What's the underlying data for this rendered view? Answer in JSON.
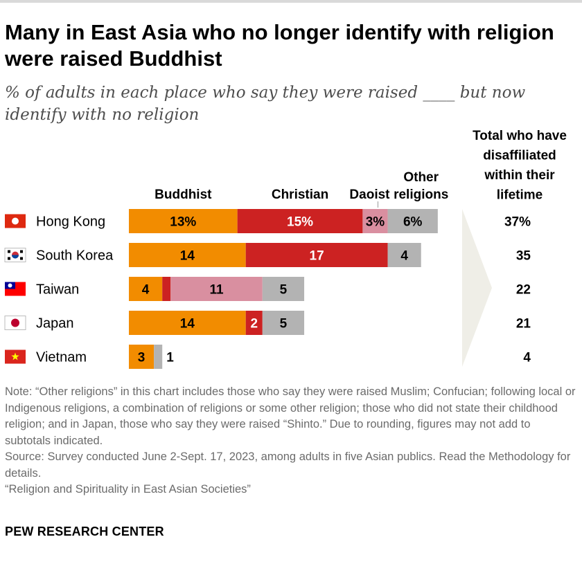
{
  "title": "Many in East Asia who no longer identify with religion were raised Buddhist",
  "subtitle": "% of adults in each place who say they were raised ____ but now identify with no religion",
  "chart_data": {
    "type": "bar",
    "orientation": "horizontal",
    "stacked": true,
    "categories": [
      "Hong Kong",
      "South Korea",
      "Taiwan",
      "Japan",
      "Vietnam"
    ],
    "series": [
      {
        "name": "Buddhist",
        "color": "#f28c00",
        "values": [
          13,
          14,
          4,
          14,
          3
        ],
        "labels": [
          "13%",
          "14",
          "4",
          "14",
          "3"
        ]
      },
      {
        "name": "Christian",
        "color": "#cc2222",
        "values": [
          15,
          17,
          1,
          2,
          0
        ],
        "labels": [
          "15%",
          "17",
          "1",
          "2",
          ""
        ]
      },
      {
        "name": "Daoist",
        "color": "#d98fa0",
        "values": [
          3,
          0,
          11,
          0,
          0
        ],
        "labels": [
          "3%",
          "",
          "11",
          "",
          ""
        ]
      },
      {
        "name": "Other religions",
        "color": "#b3b3b3",
        "values": [
          6,
          4,
          5,
          5,
          1
        ],
        "labels": [
          "6%",
          "4",
          "5",
          "5",
          "1"
        ]
      }
    ],
    "total_header": "Total who have disaffiliated within their lifetime",
    "totals": [
      "37%",
      "35",
      "22",
      "21",
      "4"
    ],
    "flags": [
      "hong-kong",
      "south-korea",
      "taiwan",
      "japan",
      "vietnam"
    ]
  },
  "notes": {
    "note": "Note: “Other religions” in this chart includes those who say they were raised Muslim; Confucian; following local or Indigenous religions, a combination of religions or some other religion; those who did not state their childhood religion; and in Japan, those who say they were raised “Shinto.” Due to rounding, figures may not add to subtotals indicated.",
    "source": "Source: Survey conducted June 2-Sept. 17, 2023, among adults in five Asian publics. Read the Methodology for details.",
    "report": "“Religion and Spirituality in East Asian Societies”"
  },
  "brand": "PEW RESEARCH CENTER"
}
